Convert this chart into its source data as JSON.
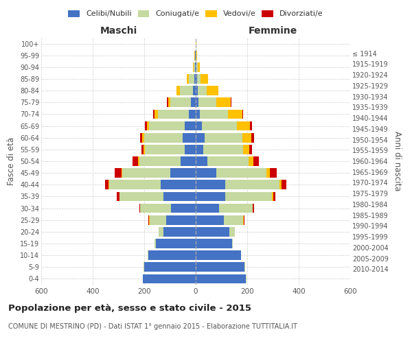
{
  "age_groups_bottom_to_top": [
    "0-4",
    "5-9",
    "10-14",
    "15-19",
    "20-24",
    "25-29",
    "30-34",
    "35-39",
    "40-44",
    "45-49",
    "50-54",
    "55-59",
    "60-64",
    "65-69",
    "70-74",
    "75-79",
    "80-84",
    "85-89",
    "90-94",
    "95-99",
    "100+"
  ],
  "birth_years_bottom_to_top": [
    "2010-2014",
    "2005-2009",
    "2000-2004",
    "1995-1999",
    "1990-1994",
    "1985-1989",
    "1980-1984",
    "1975-1979",
    "1970-1974",
    "1965-1969",
    "1960-1964",
    "1955-1959",
    "1950-1954",
    "1945-1949",
    "1940-1944",
    "1935-1939",
    "1930-1934",
    "1925-1929",
    "1920-1924",
    "1915-1919",
    "≤ 1914"
  ],
  "maschi": {
    "celibi": [
      205,
      200,
      185,
      155,
      125,
      115,
      95,
      125,
      135,
      100,
      60,
      42,
      50,
      42,
      28,
      18,
      12,
      6,
      3,
      2,
      1
    ],
    "coniugati": [
      1,
      2,
      2,
      4,
      18,
      65,
      120,
      170,
      200,
      185,
      160,
      155,
      150,
      140,
      120,
      80,
      50,
      20,
      5,
      2,
      0
    ],
    "vedovi": [
      0,
      0,
      0,
      0,
      0,
      1,
      1,
      2,
      3,
      4,
      5,
      5,
      7,
      8,
      12,
      10,
      12,
      8,
      3,
      1,
      0
    ],
    "divorziati": [
      0,
      0,
      0,
      0,
      1,
      2,
      4,
      10,
      15,
      25,
      20,
      10,
      10,
      8,
      5,
      5,
      2,
      0,
      0,
      0,
      0
    ]
  },
  "femmine": {
    "nubili": [
      195,
      190,
      175,
      140,
      130,
      110,
      90,
      115,
      115,
      80,
      45,
      30,
      35,
      25,
      15,
      10,
      7,
      4,
      2,
      1,
      1
    ],
    "coniugate": [
      1,
      2,
      2,
      4,
      22,
      75,
      130,
      180,
      210,
      195,
      160,
      155,
      145,
      135,
      110,
      70,
      35,
      15,
      5,
      2,
      0
    ],
    "vedove": [
      0,
      0,
      0,
      0,
      0,
      1,
      2,
      5,
      8,
      12,
      18,
      22,
      35,
      50,
      55,
      55,
      45,
      28,
      8,
      2,
      1
    ],
    "divorziate": [
      0,
      0,
      0,
      0,
      1,
      2,
      5,
      10,
      18,
      28,
      22,
      12,
      12,
      8,
      5,
      4,
      2,
      0,
      0,
      0,
      0
    ]
  },
  "colors": {
    "celibi_nubili": "#4472c4",
    "coniugati": "#c5d9a0",
    "vedovi": "#ffc000",
    "divorziati": "#cc0000"
  },
  "title": "Popolazione per età, sesso e stato civile - 2015",
  "subtitle": "COMUNE DI MESTRINO (PD) - Dati ISTAT 1° gennaio 2015 - Elaborazione TUTTITALIA.IT",
  "xlabel_left": "Maschi",
  "xlabel_right": "Femmine",
  "ylabel_left": "Fasce di età",
  "ylabel_right": "Anni di nascita",
  "xlim": 600,
  "legend_labels": [
    "Celibi/Nubili",
    "Coniugati/e",
    "Vedovi/e",
    "Divorziati/e"
  ],
  "background_color": "#ffffff",
  "grid_color": "#cccccc"
}
